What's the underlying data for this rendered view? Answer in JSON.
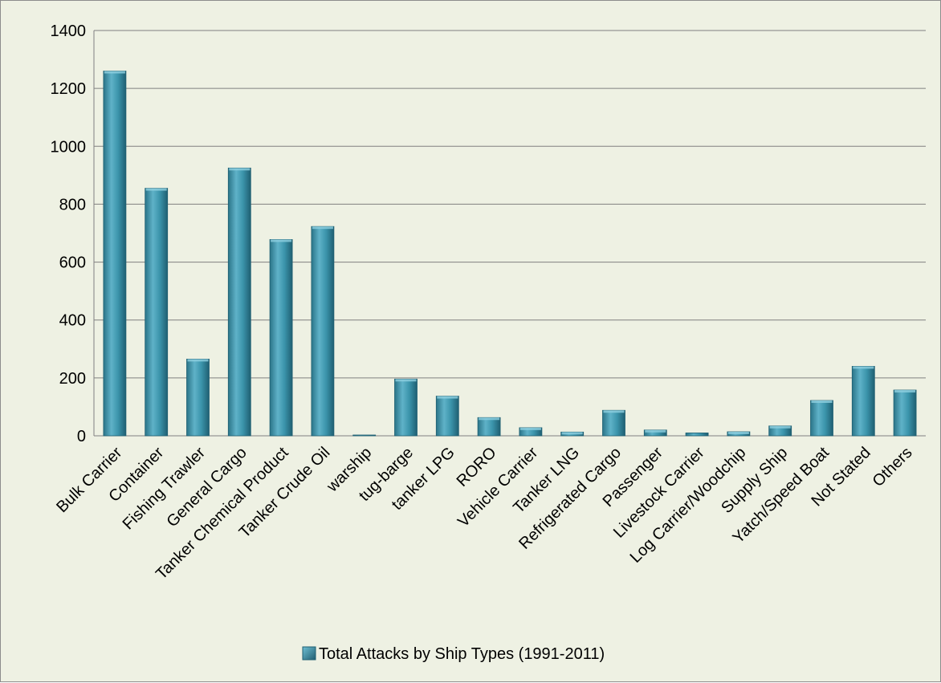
{
  "chart_data": {
    "type": "bar",
    "categories": [
      "Bulk Carrier",
      "Container",
      "Fishing Trawler",
      "General Cargo",
      "Tanker Chemical Product",
      "Tanker Crude Oil",
      "warship",
      "tug-barge",
      "tanker LPG",
      "RORO",
      "Vehicle Carrier",
      "Tanker LNG",
      "Refrigerated Cargo",
      "Passenger",
      "Livestock Carrier",
      "Log Carrier/Woodchip",
      "Supply Ship",
      "Yatch/Speed Boat",
      "Not Stated",
      "Others"
    ],
    "series": [
      {
        "name": "Total Attacks by Ship Types (1991-2011)",
        "values": [
          1260,
          855,
          265,
          925,
          678,
          723,
          2,
          196,
          137,
          63,
          28,
          13,
          88,
          20,
          10,
          14,
          34,
          122,
          240,
          158
        ]
      }
    ],
    "ylim": [
      0,
      1400
    ],
    "yticks": [
      0,
      200,
      400,
      600,
      800,
      1000,
      1200,
      1400
    ],
    "grid": true,
    "legend_position": "bottom",
    "colors": {
      "bar": "#31859c",
      "bar_light": "#6fbfd4",
      "bar_dark": "#205e70",
      "grid": "#808080"
    }
  }
}
